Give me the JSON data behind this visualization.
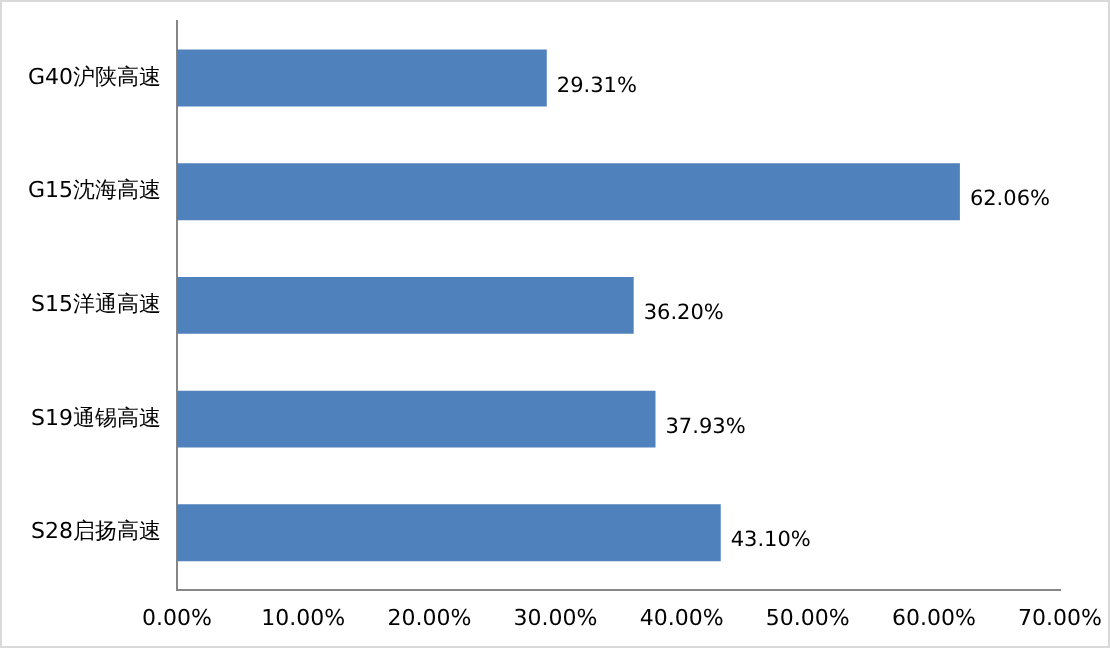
{
  "chart_data": {
    "type": "bar",
    "orientation": "horizontal",
    "categories": [
      "G40沪陕高速",
      "G15沈海高速",
      "S15洋通高速",
      "S19通锡高速",
      "S28启扬高速"
    ],
    "values": [
      29.31,
      62.06,
      36.2,
      37.93,
      43.1
    ],
    "value_labels": [
      "29.31%",
      "62.06%",
      "36.20%",
      "37.93%",
      "43.10%"
    ],
    "color": "#4f81bd",
    "xlim": [
      0,
      70
    ],
    "xticks": [
      {
        "value": 0,
        "label": "0.00%"
      },
      {
        "value": 10,
        "label": "10.00%"
      },
      {
        "value": 20,
        "label": "20.00%"
      },
      {
        "value": 30,
        "label": "30.00%"
      },
      {
        "value": 40,
        "label": "40.00%"
      },
      {
        "value": 50,
        "label": "50.00%"
      },
      {
        "value": 60,
        "label": "60.00%"
      },
      {
        "value": 70,
        "label": "70.00%"
      }
    ],
    "grid": false,
    "legend": false
  }
}
